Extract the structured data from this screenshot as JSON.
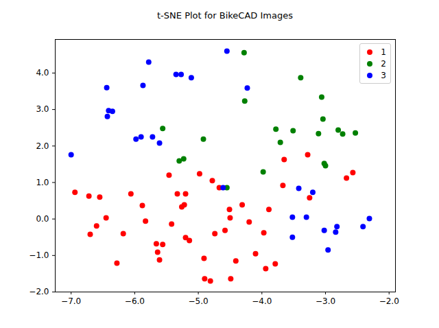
{
  "chart_data": {
    "type": "scatter",
    "title": "t-SNE Plot for BikeCAD Images",
    "xlim": [
      -7.25,
      -1.9
    ],
    "xticks": [
      -7,
      -6,
      -5,
      -4,
      -3,
      -2
    ],
    "ylim": [
      -2,
      4.92
    ],
    "yticks": [
      -2,
      -1,
      0,
      1,
      2,
      3,
      4
    ],
    "legend": "upper right",
    "series": [
      {
        "name": "1",
        "color": "red",
        "x": [
          -6.94,
          -6.72,
          -6.55,
          -6.7,
          -6.6,
          -6.45,
          -6.28,
          -6.18,
          -6.06,
          -5.88,
          -5.83,
          -5.66,
          -5.64,
          -5.61,
          -5.56,
          -5.42,
          -5.46,
          -5.33,
          -5.26,
          -5.22,
          -5.2,
          -5.2,
          -5.14,
          -4.98,
          -4.9,
          -4.81,
          -4.91,
          -4.78,
          -4.74,
          -4.67,
          -4.58,
          -4.51,
          -4.5,
          -4.49,
          -4.41,
          -4.31,
          -4.2,
          -4.1,
          -3.97,
          -3.94,
          -3.89,
          -3.79,
          -3.67,
          -3.65,
          -3.28,
          -3.25,
          -2.67,
          -2.57
        ],
        "y": [
          0.73,
          0.63,
          0.6,
          -0.42,
          -0.19,
          0.03,
          -1.21,
          -0.4,
          0.69,
          0.37,
          -0.06,
          -0.68,
          -0.91,
          -1.12,
          -0.7,
          -0.14,
          1.2,
          0.69,
          0.33,
          0.39,
          0.69,
          -0.51,
          -0.59,
          1.24,
          -1.64,
          -1.7,
          -1.08,
          1.05,
          -0.4,
          0.86,
          -0.31,
          0.26,
          0.03,
          -1.64,
          -1.15,
          0.39,
          -0.08,
          -0.95,
          -0.38,
          -1.36,
          0.26,
          -1.23,
          0.92,
          1.63,
          1.76,
          0.58,
          1.12,
          1.27
        ]
      },
      {
        "name": "2",
        "color": "green",
        "x": [
          -4.28,
          -3.39,
          -3.06,
          -3.04,
          -3.11,
          -2.8,
          -2.73,
          -2.53,
          -3.51,
          -3.78,
          -3.71,
          -3.98,
          -3.02,
          -3.0,
          -5.56,
          -5.3,
          -5.23,
          -4.92,
          -4.27,
          -4.55
        ],
        "y": [
          4.56,
          3.87,
          3.34,
          2.74,
          2.34,
          2.44,
          2.33,
          2.36,
          2.42,
          2.46,
          2.1,
          1.29,
          1.52,
          1.46,
          2.48,
          1.59,
          1.65,
          2.19,
          3.23,
          0.86
        ]
      },
      {
        "name": "3",
        "color": "blue",
        "x": [
          -4.55,
          -5.78,
          -5.87,
          -6.44,
          -6.41,
          -6.35,
          -6.43,
          -7.0,
          -5.98,
          -5.9,
          -5.72,
          -5.61,
          -5.35,
          -5.27,
          -5.11,
          -4.23,
          -4.61,
          -3.42,
          -3.2,
          -3.52,
          -3.52,
          -3.3,
          -3.02,
          -2.96,
          -2.82,
          -2.84,
          -2.41,
          -2.31
        ],
        "y": [
          4.6,
          4.3,
          3.66,
          3.6,
          2.97,
          2.95,
          2.81,
          1.76,
          2.19,
          2.25,
          2.25,
          2.08,
          3.96,
          3.96,
          3.87,
          3.59,
          0.86,
          0.84,
          0.73,
          0.05,
          -0.5,
          0.05,
          -0.31,
          -0.85,
          -0.21,
          -0.36,
          -0.21,
          0.01
        ]
      }
    ]
  }
}
